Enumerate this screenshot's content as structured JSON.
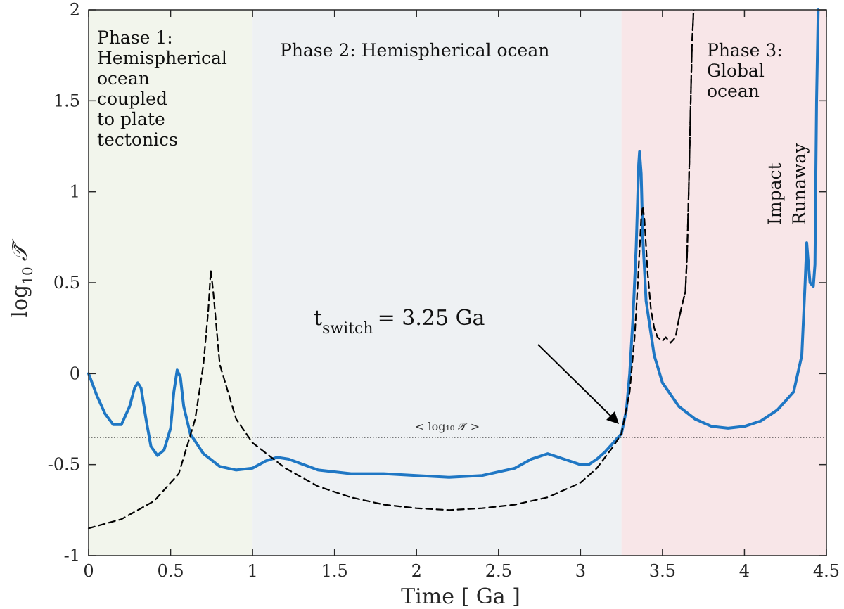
{
  "chart_data": {
    "type": "line",
    "xlabel": "Time [ Ga ]",
    "ylabel_main": "log",
    "ylabel_sub": "10",
    "ylabel_symbol": "𝒯̃",
    "xlim": [
      0,
      4.5
    ],
    "ylim": [
      -1,
      2
    ],
    "x_ticks": [
      "0",
      "0.5",
      "1",
      "1.5",
      "2",
      "2.5",
      "3",
      "3.5",
      "4",
      "4.5"
    ],
    "y_ticks": [
      "-1",
      "-0.5",
      "0",
      "0.5",
      "1",
      "1.5",
      "2"
    ],
    "phases": [
      {
        "name": "phase-1",
        "range": [
          0,
          1
        ],
        "color": "#f2f5ec",
        "label_lines": [
          "Phase 1:",
          "Hemispherical",
          "ocean",
          "coupled",
          "to plate",
          "tectonics"
        ]
      },
      {
        "name": "phase-2",
        "range": [
          1,
          3.25
        ],
        "color": "#eef1f3",
        "label_lines": [
          "Phase 2: Hemispherical ocean"
        ]
      },
      {
        "name": "phase-3",
        "range": [
          3.25,
          4.5
        ],
        "color": "#f8e6e8",
        "label_lines": [
          "Phase 3:",
          "Global",
          "ocean"
        ]
      }
    ],
    "annotations": {
      "switch_main": "t",
      "switch_sub": "switch",
      "switch_value": "= 3.25 Ga",
      "mean_label": "< log₁₀ 𝒯̃ >",
      "mean_value": -0.35,
      "impact": "Impact",
      "runaway": "Runaway"
    },
    "series": [
      {
        "style": "solid",
        "color": "#1f77c4",
        "points": [
          [
            0,
            0
          ],
          [
            0.05,
            -0.12
          ],
          [
            0.1,
            -0.22
          ],
          [
            0.15,
            -0.28
          ],
          [
            0.2,
            -0.28
          ],
          [
            0.25,
            -0.18
          ],
          [
            0.28,
            -0.08
          ],
          [
            0.3,
            -0.05
          ],
          [
            0.32,
            -0.08
          ],
          [
            0.35,
            -0.25
          ],
          [
            0.38,
            -0.4
          ],
          [
            0.42,
            -0.45
          ],
          [
            0.46,
            -0.42
          ],
          [
            0.5,
            -0.3
          ],
          [
            0.52,
            -0.1
          ],
          [
            0.54,
            0.02
          ],
          [
            0.56,
            -0.02
          ],
          [
            0.58,
            -0.18
          ],
          [
            0.62,
            -0.33
          ],
          [
            0.7,
            -0.44
          ],
          [
            0.8,
            -0.51
          ],
          [
            0.9,
            -0.53
          ],
          [
            1.0,
            -0.52
          ],
          [
            1.08,
            -0.48
          ],
          [
            1.15,
            -0.46
          ],
          [
            1.22,
            -0.47
          ],
          [
            1.4,
            -0.53
          ],
          [
            1.6,
            -0.55
          ],
          [
            1.8,
            -0.55
          ],
          [
            2.0,
            -0.56
          ],
          [
            2.2,
            -0.57
          ],
          [
            2.4,
            -0.56
          ],
          [
            2.6,
            -0.52
          ],
          [
            2.7,
            -0.47
          ],
          [
            2.8,
            -0.44
          ],
          [
            2.9,
            -0.47
          ],
          [
            3.0,
            -0.5
          ],
          [
            3.05,
            -0.5
          ],
          [
            3.1,
            -0.47
          ],
          [
            3.15,
            -0.43
          ],
          [
            3.2,
            -0.38
          ],
          [
            3.25,
            -0.33
          ],
          [
            3.28,
            -0.2
          ],
          [
            3.3,
            0
          ],
          [
            3.32,
            0.3
          ],
          [
            3.34,
            0.7
          ],
          [
            3.355,
            1.15
          ],
          [
            3.36,
            1.22
          ],
          [
            3.37,
            1.1
          ],
          [
            3.38,
            0.75
          ],
          [
            3.4,
            0.4
          ],
          [
            3.45,
            0.1
          ],
          [
            3.5,
            -0.05
          ],
          [
            3.6,
            -0.18
          ],
          [
            3.7,
            -0.25
          ],
          [
            3.8,
            -0.29
          ],
          [
            3.9,
            -0.3
          ],
          [
            4.0,
            -0.29
          ],
          [
            4.1,
            -0.26
          ],
          [
            4.2,
            -0.2
          ],
          [
            4.3,
            -0.1
          ],
          [
            4.35,
            0.1
          ],
          [
            4.37,
            0.5
          ],
          [
            4.38,
            0.72
          ],
          [
            4.39,
            0.6
          ],
          [
            4.4,
            0.5
          ],
          [
            4.42,
            0.48
          ],
          [
            4.43,
            0.6
          ],
          [
            4.44,
            1.5
          ],
          [
            4.45,
            2
          ]
        ]
      },
      {
        "style": "dashed",
        "color": "#000000",
        "points": [
          [
            0,
            -0.85
          ],
          [
            0.2,
            -0.8
          ],
          [
            0.4,
            -0.7
          ],
          [
            0.55,
            -0.55
          ],
          [
            0.65,
            -0.25
          ],
          [
            0.7,
            0.05
          ],
          [
            0.73,
            0.35
          ],
          [
            0.745,
            0.57
          ],
          [
            0.76,
            0.45
          ],
          [
            0.8,
            0.05
          ],
          [
            0.9,
            -0.25
          ],
          [
            1.0,
            -0.38
          ],
          [
            1.2,
            -0.52
          ],
          [
            1.4,
            -0.62
          ],
          [
            1.6,
            -0.68
          ],
          [
            1.8,
            -0.72
          ],
          [
            2.0,
            -0.74
          ],
          [
            2.2,
            -0.75
          ],
          [
            2.4,
            -0.74
          ],
          [
            2.6,
            -0.72
          ],
          [
            2.8,
            -0.68
          ],
          [
            3.0,
            -0.6
          ],
          [
            3.1,
            -0.52
          ],
          [
            3.2,
            -0.4
          ],
          [
            3.25,
            -0.33
          ],
          [
            3.3,
            -0.1
          ],
          [
            3.33,
            0.2
          ],
          [
            3.35,
            0.5
          ],
          [
            3.37,
            0.85
          ],
          [
            3.38,
            0.92
          ],
          [
            3.39,
            0.85
          ],
          [
            3.41,
            0.55
          ],
          [
            3.43,
            0.35
          ],
          [
            3.45,
            0.25
          ],
          [
            3.47,
            0.2
          ],
          [
            3.5,
            0.18
          ],
          [
            3.52,
            0.2
          ],
          [
            3.55,
            0.17
          ],
          [
            3.58,
            0.2
          ],
          [
            3.6,
            0.3
          ],
          [
            3.62,
            0.38
          ],
          [
            3.64,
            0.45
          ],
          [
            3.65,
            0.65
          ],
          [
            3.66,
            1.0
          ],
          [
            3.67,
            1.4
          ],
          [
            3.68,
            1.8
          ],
          [
            3.69,
            2
          ]
        ]
      }
    ]
  }
}
